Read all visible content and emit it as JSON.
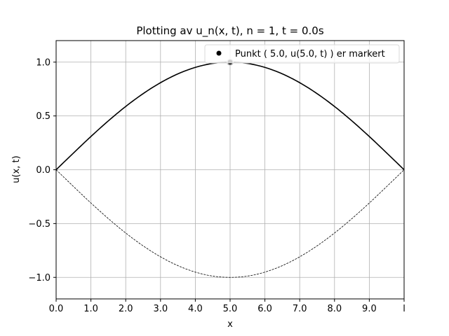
{
  "chart_data": {
    "type": "line",
    "title": "Plotting av u_n(x, t), n = 1, t = 0.0s",
    "xlabel": "x",
    "ylabel": "u(x, t)",
    "xlim": [
      0,
      10
    ],
    "ylim": [
      -1.2,
      1.2
    ],
    "x_ticks": [
      0,
      1,
      2,
      3,
      4,
      5,
      6,
      7,
      8,
      9,
      10
    ],
    "x_tick_labels": [
      "0.0",
      "1.0",
      "2.0",
      "3.0",
      "4.0",
      "5.0",
      "6.0",
      "7.0",
      "8.0",
      "9.0",
      "l"
    ],
    "y_ticks": [
      -1.0,
      -0.5,
      0.0,
      0.5,
      1.0
    ],
    "y_tick_labels": [
      "−1.0",
      "−0.5",
      "0.0",
      "0.5",
      "1.0"
    ],
    "grid": true,
    "legend_position": "top-right",
    "series": [
      {
        "style": "solid",
        "color": "#000000",
        "x": [
          0,
          0.5,
          1,
          1.5,
          2,
          2.5,
          3,
          3.5,
          4,
          4.5,
          5,
          5.5,
          6,
          6.5,
          7,
          7.5,
          8,
          8.5,
          9,
          9.5,
          10
        ],
        "y": [
          0,
          0.156,
          0.309,
          0.454,
          0.588,
          0.707,
          0.809,
          0.891,
          0.951,
          0.988,
          1.0,
          0.988,
          0.951,
          0.891,
          0.809,
          0.707,
          0.588,
          0.454,
          0.309,
          0.156,
          0
        ]
      },
      {
        "style": "dashed",
        "color": "#000000",
        "x": [
          0,
          0.5,
          1,
          1.5,
          2,
          2.5,
          3,
          3.5,
          4,
          4.5,
          5,
          5.5,
          6,
          6.5,
          7,
          7.5,
          8,
          8.5,
          9,
          9.5,
          10
        ],
        "y": [
          0,
          -0.156,
          -0.309,
          -0.454,
          -0.588,
          -0.707,
          -0.809,
          -0.891,
          -0.951,
          -0.988,
          -1.0,
          -0.988,
          -0.951,
          -0.891,
          -0.809,
          -0.707,
          -0.588,
          -0.454,
          -0.309,
          -0.156,
          0
        ]
      }
    ],
    "marker_point": {
      "x": 5.0,
      "y": 1.0,
      "color": "#000000",
      "legend_label": "Punkt ( 5.0, u(5.0, t) ) er markert"
    },
    "colors": {
      "grid": "#b0b0b0",
      "axes": "#000000",
      "marker_halo": "#c8c8c8",
      "legend_border": "#d9d9d9"
    }
  }
}
